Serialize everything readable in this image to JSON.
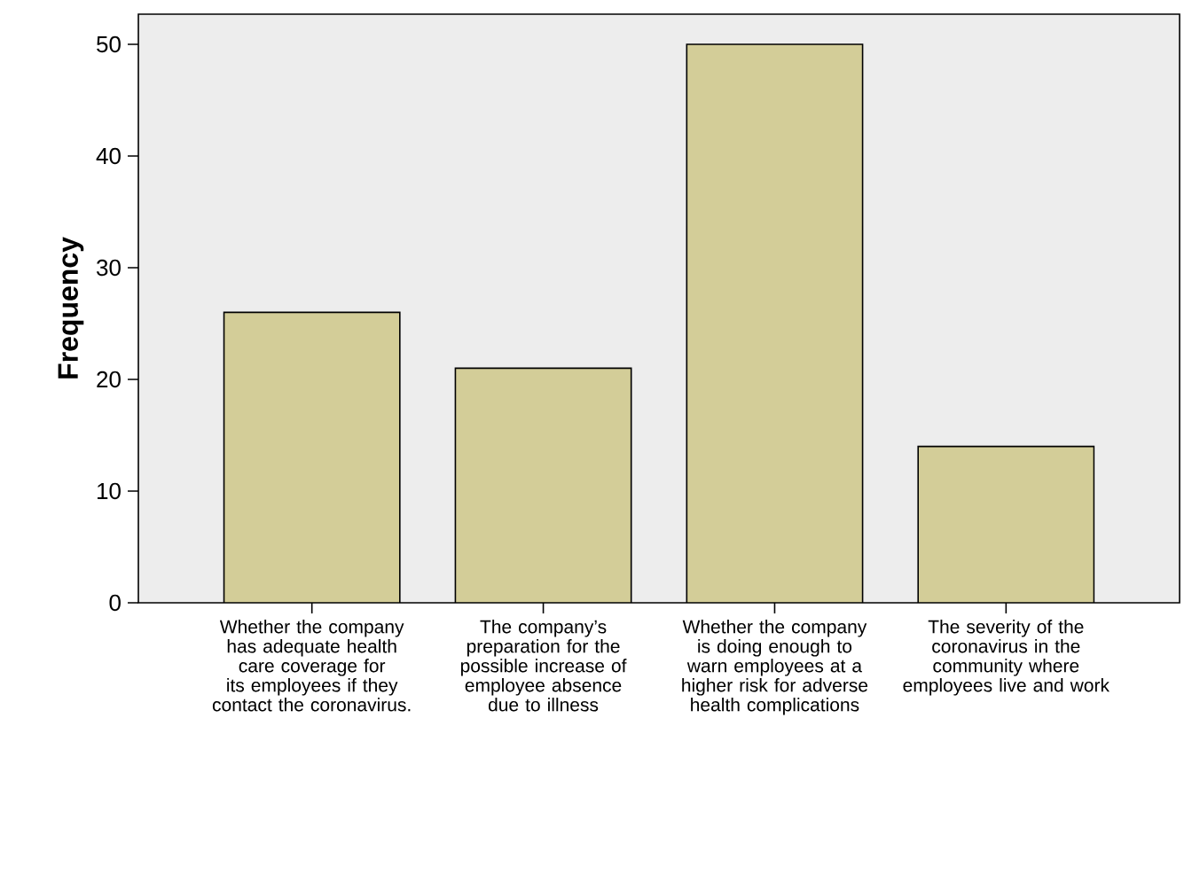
{
  "chart_data": {
    "type": "bar",
    "ylabel": "Frequency",
    "categories": [
      "Whether the company has adequate health care coverage for its employees if they contact the coronavirus.",
      "The company’s preparation for the possible increase of employee absence due to illness",
      "Whether the company is doing enough to warn employees at a higher risk for adverse health complications",
      "The severity of the coronavirus in the community where employees live and work"
    ],
    "values": [
      26,
      21,
      50,
      14
    ],
    "color": "#d3cd98",
    "ylim": [
      0,
      52.7
    ],
    "yticks": [
      0,
      10,
      20,
      30,
      40,
      50
    ]
  }
}
